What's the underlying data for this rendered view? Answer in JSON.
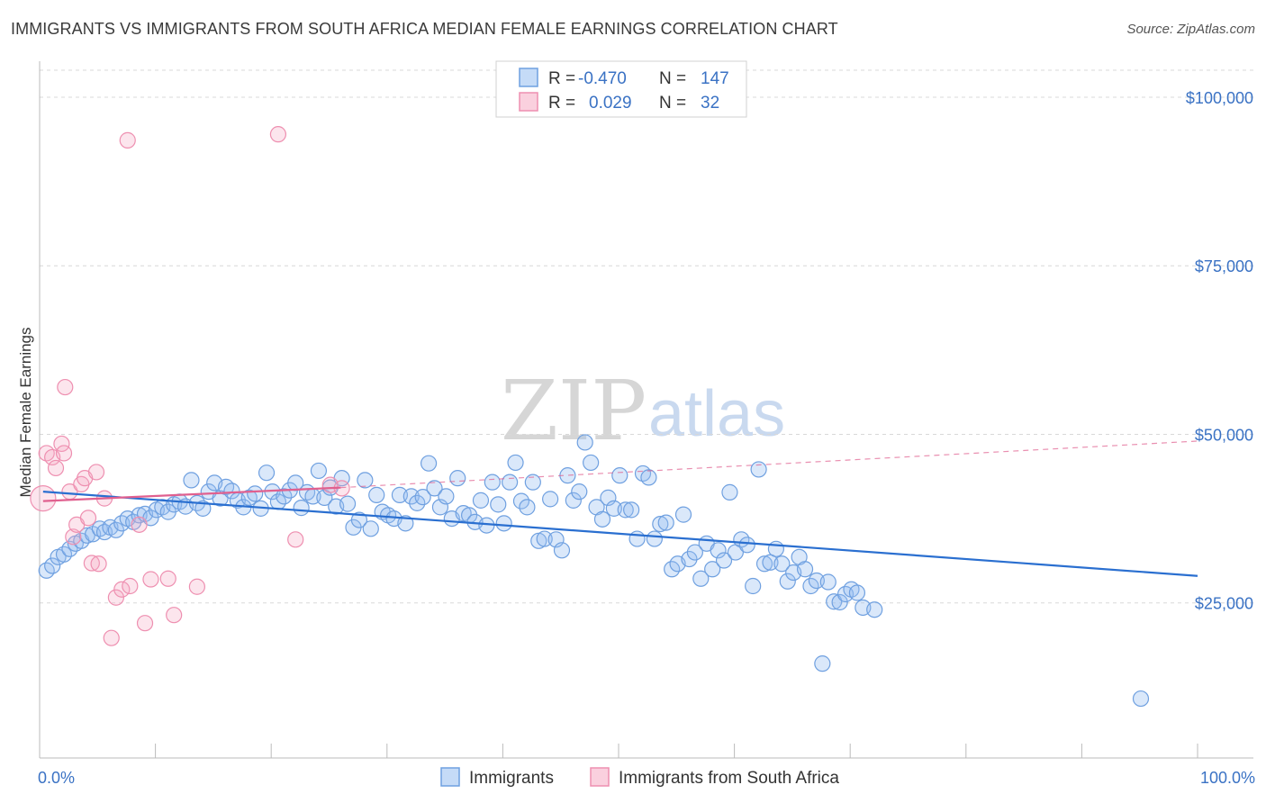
{
  "title": "IMMIGRANTS VS IMMIGRANTS FROM SOUTH AFRICA MEDIAN FEMALE EARNINGS CORRELATION CHART",
  "source": "Source: ZipAtlas.com",
  "watermark": {
    "zip": "ZIP",
    "atlas": "atlas"
  },
  "colors": {
    "blue": "#6fa0e0",
    "blue_fill": "rgba(150,190,240,0.35)",
    "blue_line": "#2a6fd0",
    "pink": "#ee8fb0",
    "pink_fill": "rgba(245,170,195,0.30)",
    "pink_line": "#e0608f",
    "axis_text": "#3a72c4",
    "grid": "#d8d8d8"
  },
  "legend": {
    "series1": {
      "r_label": "R =",
      "r_value": "-0.470",
      "n_label": "N =",
      "n_value": "147"
    },
    "series2": {
      "r_label": "R =",
      "r_value": "0.029",
      "n_label": "N =",
      "n_value": "32"
    }
  },
  "bottom_legend": {
    "series1": "Immigrants",
    "series2": "Immigrants from South Africa"
  },
  "chart_data": {
    "type": "scatter",
    "title": "IMMIGRANTS VS IMMIGRANTS FROM SOUTH AFRICA MEDIAN FEMALE EARNINGS CORRELATION CHART",
    "xlabel": "",
    "ylabel": "Median Female Earnings",
    "xlim": [
      0,
      100
    ],
    "ylim": [
      2000,
      104000
    ],
    "x_tick_labels": [
      "0.0%",
      "100.0%"
    ],
    "y_ticks": [
      25000,
      50000,
      75000,
      100000
    ],
    "y_tick_labels": [
      "$25,000",
      "$50,000",
      "$75,000",
      "$100,000"
    ],
    "grid": true,
    "series": [
      {
        "name": "Immigrants",
        "trend": {
          "x0": 0.3,
          "y0": 41500,
          "x1": 100,
          "y1": 29000,
          "dashed_extension": false
        },
        "points": [
          [
            0.6,
            29800
          ],
          [
            1.1,
            30500
          ],
          [
            1.6,
            31800
          ],
          [
            2.1,
            32200
          ],
          [
            2.6,
            33000
          ],
          [
            3.1,
            33800
          ],
          [
            3.6,
            34200
          ],
          [
            4.1,
            35000
          ],
          [
            4.6,
            35200
          ],
          [
            5.2,
            36000
          ],
          [
            5.6,
            35500
          ],
          [
            6.1,
            36200
          ],
          [
            6.6,
            35800
          ],
          [
            7.1,
            36800
          ],
          [
            7.6,
            37500
          ],
          [
            8.1,
            37000
          ],
          [
            8.6,
            38000
          ],
          [
            9.1,
            38200
          ],
          [
            9.6,
            37600
          ],
          [
            10.1,
            38800
          ],
          [
            10.6,
            39200
          ],
          [
            11.1,
            38500
          ],
          [
            11.6,
            39600
          ],
          [
            12.1,
            40000
          ],
          [
            12.6,
            39300
          ],
          [
            13.1,
            43200
          ],
          [
            13.6,
            39800
          ],
          [
            14.1,
            39000
          ],
          [
            14.6,
            41500
          ],
          [
            15.1,
            42800
          ],
          [
            15.6,
            40500
          ],
          [
            16.1,
            42200
          ],
          [
            16.6,
            41600
          ],
          [
            17.1,
            40200
          ],
          [
            17.6,
            39200
          ],
          [
            18.1,
            40600
          ],
          [
            18.6,
            41200
          ],
          [
            19.1,
            39000
          ],
          [
            19.6,
            44300
          ],
          [
            20.1,
            41500
          ],
          [
            20.6,
            40000
          ],
          [
            21.1,
            40800
          ],
          [
            21.6,
            41700
          ],
          [
            22.1,
            42800
          ],
          [
            22.6,
            39100
          ],
          [
            23.1,
            41400
          ],
          [
            23.6,
            40800
          ],
          [
            24.1,
            44600
          ],
          [
            24.6,
            40600
          ],
          [
            25.1,
            42100
          ],
          [
            25.6,
            39300
          ],
          [
            26.1,
            43500
          ],
          [
            26.6,
            39700
          ],
          [
            27.1,
            36200
          ],
          [
            27.6,
            37300
          ],
          [
            28.1,
            43200
          ],
          [
            28.6,
            36000
          ],
          [
            29.1,
            41000
          ],
          [
            29.6,
            38500
          ],
          [
            30.1,
            38000
          ],
          [
            30.6,
            37500
          ],
          [
            31.1,
            41000
          ],
          [
            31.6,
            36800
          ],
          [
            32.1,
            40800
          ],
          [
            32.6,
            39800
          ],
          [
            33.1,
            40700
          ],
          [
            33.6,
            45700
          ],
          [
            34.1,
            42000
          ],
          [
            34.6,
            39200
          ],
          [
            35.1,
            40800
          ],
          [
            35.6,
            37500
          ],
          [
            36.1,
            43500
          ],
          [
            36.6,
            38300
          ],
          [
            37.1,
            38000
          ],
          [
            37.6,
            37000
          ],
          [
            38.1,
            40200
          ],
          [
            38.6,
            36500
          ],
          [
            39.1,
            42900
          ],
          [
            39.6,
            39600
          ],
          [
            40.1,
            36800
          ],
          [
            40.6,
            42900
          ],
          [
            41.1,
            45800
          ],
          [
            41.6,
            40100
          ],
          [
            42.1,
            39200
          ],
          [
            42.6,
            42900
          ],
          [
            43.1,
            34200
          ],
          [
            43.6,
            34500
          ],
          [
            44.1,
            40400
          ],
          [
            44.6,
            34400
          ],
          [
            45.1,
            32800
          ],
          [
            45.6,
            43900
          ],
          [
            46.1,
            40200
          ],
          [
            46.6,
            41500
          ],
          [
            47.1,
            48800
          ],
          [
            47.6,
            45800
          ],
          [
            48.1,
            39200
          ],
          [
            48.6,
            37400
          ],
          [
            49.1,
            40600
          ],
          [
            49.6,
            39000
          ],
          [
            50.1,
            43900
          ],
          [
            50.6,
            38800
          ],
          [
            51.1,
            38800
          ],
          [
            51.6,
            34500
          ],
          [
            52.1,
            44200
          ],
          [
            52.6,
            43600
          ],
          [
            53.1,
            34500
          ],
          [
            53.6,
            36700
          ],
          [
            54.1,
            36900
          ],
          [
            54.6,
            30000
          ],
          [
            55.1,
            30800
          ],
          [
            55.6,
            38100
          ],
          [
            56.1,
            31500
          ],
          [
            56.6,
            32500
          ],
          [
            57.1,
            28600
          ],
          [
            57.6,
            33800
          ],
          [
            58.1,
            30000
          ],
          [
            58.6,
            32800
          ],
          [
            59.1,
            31300
          ],
          [
            59.6,
            41400
          ],
          [
            60.1,
            32500
          ],
          [
            60.6,
            34400
          ],
          [
            61.1,
            33600
          ],
          [
            61.6,
            27500
          ],
          [
            62.1,
            44800
          ],
          [
            62.6,
            30800
          ],
          [
            63.1,
            31000
          ],
          [
            63.6,
            33000
          ],
          [
            64.1,
            30800
          ],
          [
            64.6,
            28200
          ],
          [
            65.1,
            29500
          ],
          [
            65.6,
            31800
          ],
          [
            66.1,
            30000
          ],
          [
            66.6,
            27500
          ],
          [
            67.1,
            28300
          ],
          [
            67.6,
            16000
          ],
          [
            68.1,
            28100
          ],
          [
            68.6,
            25200
          ],
          [
            69.1,
            25100
          ],
          [
            69.6,
            26300
          ],
          [
            70.1,
            27000
          ],
          [
            70.6,
            26500
          ],
          [
            71.1,
            24300
          ],
          [
            72.1,
            24000
          ],
          [
            95.1,
            10800
          ]
        ]
      },
      {
        "name": "Immigrants from South Africa",
        "trend": {
          "x0": 0.3,
          "y0": 40100,
          "x1": 26,
          "y1": 42100,
          "dashed_extension": true,
          "dash_to_x": 100,
          "dash_to_y": 49000
        },
        "points": [
          [
            0.3,
            40500
          ],
          [
            0.6,
            47200
          ],
          [
            1.1,
            46600
          ],
          [
            1.4,
            45000
          ],
          [
            1.9,
            48600
          ],
          [
            2.1,
            47200
          ],
          [
            2.2,
            57000
          ],
          [
            2.6,
            41500
          ],
          [
            2.9,
            34800
          ],
          [
            3.2,
            36600
          ],
          [
            3.6,
            42600
          ],
          [
            3.9,
            43500
          ],
          [
            4.2,
            37600
          ],
          [
            4.5,
            30900
          ],
          [
            4.9,
            44400
          ],
          [
            5.1,
            30800
          ],
          [
            5.6,
            40500
          ],
          [
            6.2,
            19800
          ],
          [
            6.6,
            25800
          ],
          [
            7.1,
            27000
          ],
          [
            7.6,
            93600
          ],
          [
            7.8,
            27500
          ],
          [
            8.6,
            36600
          ],
          [
            9.1,
            22000
          ],
          [
            9.6,
            28500
          ],
          [
            11.1,
            28600
          ],
          [
            11.6,
            23200
          ],
          [
            13.6,
            27400
          ],
          [
            20.6,
            94500
          ],
          [
            22.1,
            34400
          ],
          [
            25.1,
            42500
          ],
          [
            26.1,
            42000
          ]
        ]
      }
    ]
  }
}
